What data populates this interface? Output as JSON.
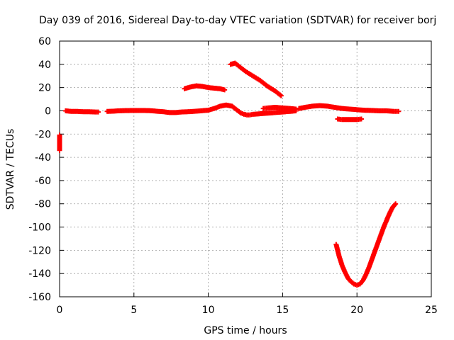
{
  "chart_data": {
    "type": "scatter",
    "title": "Day 039 of 2016, Sidereal Day-to-day VTEC variation (SDTVAR) for receiver borj",
    "xlabel": "GPS time / hours",
    "ylabel": "SDTVAR / TECUs",
    "xlim": [
      0,
      25
    ],
    "ylim": [
      -160,
      60
    ],
    "x_ticks": [
      "0",
      "5",
      "10",
      "15",
      "20",
      "25"
    ],
    "y_ticks": [
      "60",
      "40",
      "20",
      "0",
      "-20",
      "-40",
      "-60",
      "-80",
      "-100",
      "-120",
      "-140",
      "-160"
    ],
    "grid": true,
    "marker": "+",
    "color": "#ff0000",
    "series": [
      {
        "segments": [
          {
            "x": [
              0.0,
              0.0,
              0.0,
              0.0
            ],
            "y": [
              -21,
              -26,
              -31,
              -34
            ]
          }
        ]
      },
      {
        "segments": [
          {
            "x": [
              0.4,
              0.8,
              1.2,
              1.6,
              2.0,
              2.4,
              2.6
            ],
            "y": [
              0,
              -0.5,
              -0.5,
              -0.8,
              -0.8,
              -1,
              -1
            ]
          },
          {
            "x": [
              3.2,
              3.6,
              4.0,
              4.5,
              5.0,
              5.5,
              6.0,
              6.5,
              7.0,
              7.4,
              7.8,
              8.2,
              8.6,
              9.0,
              9.5,
              10.0,
              10.4,
              10.8,
              11.2,
              11.6,
              11.8,
              12.0,
              12.2,
              12.4,
              12.6,
              12.8,
              13.0,
              13.5,
              14.0,
              14.5,
              15.0,
              15.5,
              15.9
            ],
            "y": [
              -0.5,
              -0.3,
              0,
              0.2,
              0.3,
              0.3,
              0.2,
              -0.3,
              -0.8,
              -1.5,
              -1.5,
              -1,
              -0.8,
              -0.5,
              0,
              0.5,
              2,
              4,
              5,
              4,
              2,
              0,
              -2,
              -3,
              -3.5,
              -3.5,
              -3,
              -2.5,
              -2,
              -1.5,
              -1,
              -0.5,
              0
            ]
          }
        ]
      },
      {
        "segments": [
          {
            "x": [
              8.4,
              8.8,
              9.2,
              9.6,
              10.0,
              10.4,
              10.8,
              11.1
            ],
            "y": [
              19,
              20.5,
              21.5,
              21,
              20,
              19.5,
              19,
              18
            ]
          }
        ]
      },
      {
        "segments": [
          {
            "x": [
              11.5,
              11.8,
              12.1,
              12.5,
              13.0,
              13.5,
              14.0,
              14.5,
              14.9
            ],
            "y": [
              40,
              41,
              38,
              34,
              30,
              26,
              21,
              17,
              13
            ]
          }
        ]
      },
      {
        "segments": [
          {
            "x": [
              13.7,
              14.0,
              14.5,
              15.0,
              15.5,
              15.9
            ],
            "y": [
              2,
              2.5,
              3,
              2.5,
              2,
              1.5
            ]
          }
        ]
      },
      {
        "segments": [
          {
            "x": [
              16.1,
              16.5,
              17.0,
              17.5,
              18.0,
              18.5,
              19.0,
              19.5,
              20.0,
              20.5,
              21.0,
              21.5,
              22.0,
              22.5,
              22.8
            ],
            "y": [
              2,
              3,
              4,
              4.5,
              4,
              3,
              2,
              1.5,
              1,
              0.5,
              0.3,
              0,
              0,
              -0.5,
              -0.5
            ]
          }
        ]
      },
      {
        "segments": [
          {
            "x": [
              18.7,
              19.0,
              19.5,
              20.0,
              20.3
            ],
            "y": [
              -7,
              -7.5,
              -7.5,
              -7.5,
              -7
            ]
          }
        ]
      },
      {
        "segments": [
          {
            "x": [
              18.6,
              18.8,
              19.0,
              19.2,
              19.4,
              19.6,
              19.8,
              20.0,
              20.2,
              20.4,
              20.6,
              20.8,
              21.0,
              21.2,
              21.4,
              21.6,
              21.8,
              22.0,
              22.2,
              22.4,
              22.6
            ],
            "y": [
              -115,
              -125,
              -133,
              -139,
              -144,
              -147,
              -149,
              -150,
              -149,
              -146,
              -141,
              -135,
              -128,
              -121,
              -114,
              -107,
              -100,
              -94,
              -88,
              -83,
              -80
            ]
          }
        ]
      }
    ]
  }
}
